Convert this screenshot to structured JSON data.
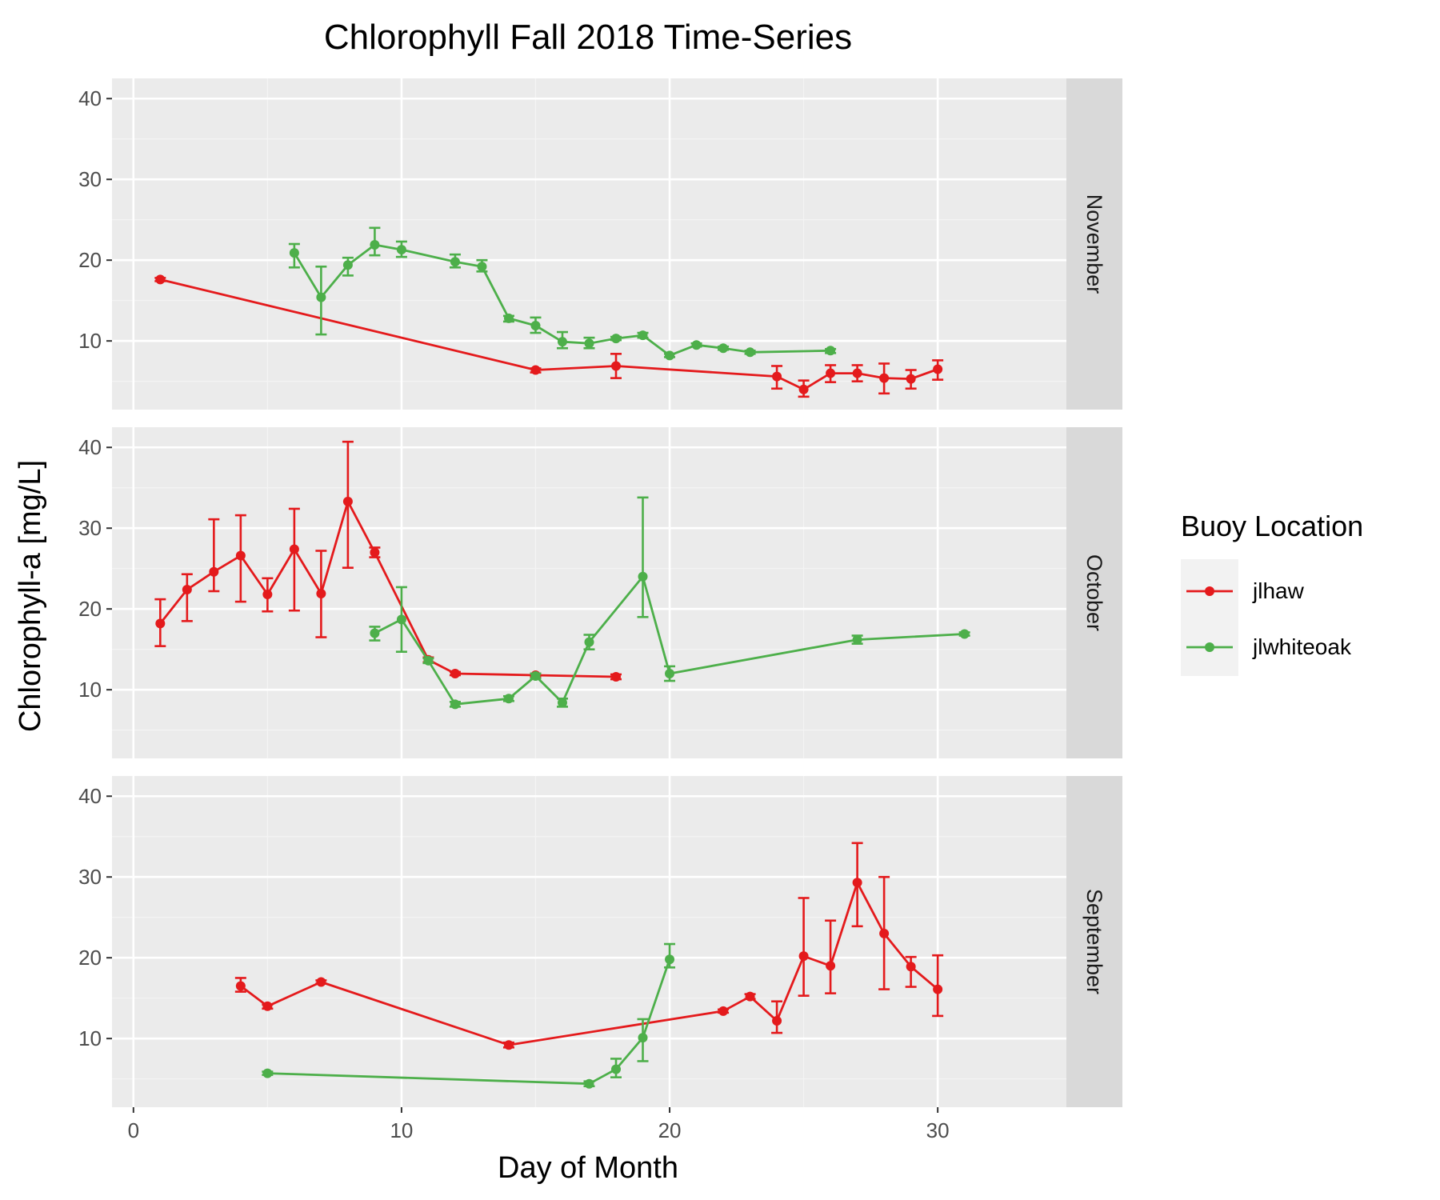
{
  "chart_data": {
    "type": "line",
    "title": "Chlorophyll Fall 2018 Time-Series",
    "xlabel": "Day of Month",
    "ylabel": "Chlorophyll-a [mg/L]",
    "xlim": [
      -0.8,
      34.8
    ],
    "ylim": [
      1.5,
      42.5
    ],
    "x_ticks": [
      0,
      10,
      20,
      30
    ],
    "y_ticks": [
      10,
      20,
      30,
      40
    ],
    "grid": true,
    "error_bars": true,
    "legend": {
      "title": "Buoy Location",
      "placement": "right",
      "entries": [
        "jlhaw",
        "jlwhiteoak"
      ]
    },
    "colors": {
      "jlhaw": "#e41a1c",
      "jlwhiteoak": "#4daf4a"
    },
    "panels": [
      {
        "strip": "November",
        "series": [
          {
            "name": "jlhaw",
            "points": [
              {
                "x": 1,
                "y": 17.6,
                "lo": 17.4,
                "hi": 17.8
              },
              {
                "x": 15,
                "y": 6.4,
                "lo": 6.1,
                "hi": 6.6
              },
              {
                "x": 18,
                "y": 6.9,
                "lo": 5.4,
                "hi": 8.4
              },
              {
                "x": 24,
                "y": 5.6,
                "lo": 4.1,
                "hi": 6.9
              },
              {
                "x": 25,
                "y": 4.0,
                "lo": 3.1,
                "hi": 5.1
              },
              {
                "x": 26,
                "y": 6.0,
                "lo": 4.9,
                "hi": 7.0
              },
              {
                "x": 27,
                "y": 6.0,
                "lo": 5.0,
                "hi": 7.0
              },
              {
                "x": 28,
                "y": 5.4,
                "lo": 3.5,
                "hi": 7.2
              },
              {
                "x": 29,
                "y": 5.3,
                "lo": 4.1,
                "hi": 6.4
              },
              {
                "x": 30,
                "y": 6.5,
                "lo": 5.2,
                "hi": 7.6
              }
            ]
          },
          {
            "name": "jlwhiteoak",
            "points": [
              {
                "x": 6,
                "y": 20.9,
                "lo": 19.1,
                "hi": 22.0
              },
              {
                "x": 7,
                "y": 15.4,
                "lo": 10.8,
                "hi": 19.2
              },
              {
                "x": 8,
                "y": 19.4,
                "lo": 18.1,
                "hi": 20.3
              },
              {
                "x": 9,
                "y": 21.9,
                "lo": 20.6,
                "hi": 24.0
              },
              {
                "x": 10,
                "y": 21.3,
                "lo": 20.4,
                "hi": 22.3
              },
              {
                "x": 12,
                "y": 19.8,
                "lo": 19.1,
                "hi": 20.7
              },
              {
                "x": 13,
                "y": 19.2,
                "lo": 18.6,
                "hi": 20.0
              },
              {
                "x": 14,
                "y": 12.8,
                "lo": 12.4,
                "hi": 13.1
              },
              {
                "x": 15,
                "y": 11.9,
                "lo": 11.0,
                "hi": 12.9
              },
              {
                "x": 16,
                "y": 9.9,
                "lo": 9.1,
                "hi": 11.1
              },
              {
                "x": 17,
                "y": 9.7,
                "lo": 9.1,
                "hi": 10.4
              },
              {
                "x": 18,
                "y": 10.3,
                "lo": 10.1,
                "hi": 10.5
              },
              {
                "x": 19,
                "y": 10.7,
                "lo": 10.4,
                "hi": 11.0
              },
              {
                "x": 20,
                "y": 8.2,
                "lo": 8.0,
                "hi": 8.4
              },
              {
                "x": 21,
                "y": 9.5,
                "lo": 9.3,
                "hi": 9.7
              },
              {
                "x": 22,
                "y": 9.1,
                "lo": 8.9,
                "hi": 9.3
              },
              {
                "x": 23,
                "y": 8.6,
                "lo": 8.4,
                "hi": 8.8
              },
              {
                "x": 26,
                "y": 8.8,
                "lo": 8.5,
                "hi": 9.0
              }
            ]
          }
        ]
      },
      {
        "strip": "October",
        "series": [
          {
            "name": "jlhaw",
            "points": [
              {
                "x": 1,
                "y": 18.2,
                "lo": 15.4,
                "hi": 21.2
              },
              {
                "x": 2,
                "y": 22.4,
                "lo": 18.5,
                "hi": 24.3
              },
              {
                "x": 3,
                "y": 24.6,
                "lo": 22.2,
                "hi": 31.1
              },
              {
                "x": 4,
                "y": 26.6,
                "lo": 20.9,
                "hi": 31.6
              },
              {
                "x": 5,
                "y": 21.8,
                "lo": 19.7,
                "hi": 23.8
              },
              {
                "x": 6,
                "y": 27.4,
                "lo": 19.8,
                "hi": 32.4
              },
              {
                "x": 7,
                "y": 21.9,
                "lo": 16.5,
                "hi": 27.2
              },
              {
                "x": 8,
                "y": 33.3,
                "lo": 25.1,
                "hi": 40.7
              },
              {
                "x": 9,
                "y": 27.0,
                "lo": 26.4,
                "hi": 27.6
              },
              {
                "x": 11,
                "y": 13.7,
                "lo": 13.4,
                "hi": 14.0
              },
              {
                "x": 12,
                "y": 12.0,
                "lo": 11.8,
                "hi": 12.2
              },
              {
                "x": 15,
                "y": 11.8,
                "lo": 11.6,
                "hi": 12.0
              },
              {
                "x": 18,
                "y": 11.6,
                "lo": 11.3,
                "hi": 11.9
              }
            ]
          },
          {
            "name": "jlwhiteoak",
            "points": [
              {
                "x": 9,
                "y": 17.0,
                "lo": 16.1,
                "hi": 17.8
              },
              {
                "x": 10,
                "y": 18.7,
                "lo": 14.7,
                "hi": 22.7
              },
              {
                "x": 11,
                "y": 13.6,
                "lo": 13.3,
                "hi": 13.9
              },
              {
                "x": 12,
                "y": 8.2,
                "lo": 7.9,
                "hi": 8.5
              },
              {
                "x": 14,
                "y": 8.9,
                "lo": 8.6,
                "hi": 9.2
              },
              {
                "x": 15,
                "y": 11.7,
                "lo": 11.4,
                "hi": 12.0
              },
              {
                "x": 16,
                "y": 8.4,
                "lo": 7.9,
                "hi": 8.9
              },
              {
                "x": 17,
                "y": 15.9,
                "lo": 15.0,
                "hi": 16.8
              },
              {
                "x": 19,
                "y": 24.0,
                "lo": 19.0,
                "hi": 33.8
              },
              {
                "x": 20,
                "y": 12.0,
                "lo": 11.1,
                "hi": 12.9
              },
              {
                "x": 27,
                "y": 16.2,
                "lo": 15.7,
                "hi": 16.7
              },
              {
                "x": 31,
                "y": 16.9,
                "lo": 16.7,
                "hi": 17.1
              }
            ]
          }
        ]
      },
      {
        "strip": "September",
        "series": [
          {
            "name": "jlhaw",
            "points": [
              {
                "x": 4,
                "y": 16.5,
                "lo": 15.8,
                "hi": 17.5
              },
              {
                "x": 5,
                "y": 14.0,
                "lo": 13.7,
                "hi": 14.2
              },
              {
                "x": 7,
                "y": 17.0,
                "lo": 16.8,
                "hi": 17.2
              },
              {
                "x": 14,
                "y": 9.2,
                "lo": 8.9,
                "hi": 9.5
              },
              {
                "x": 22,
                "y": 13.4,
                "lo": 13.2,
                "hi": 13.6
              },
              {
                "x": 23,
                "y": 15.2,
                "lo": 14.9,
                "hi": 15.5
              },
              {
                "x": 24,
                "y": 12.2,
                "lo": 10.7,
                "hi": 14.6
              },
              {
                "x": 25,
                "y": 20.2,
                "lo": 15.3,
                "hi": 27.4
              },
              {
                "x": 26,
                "y": 19.0,
                "lo": 15.6,
                "hi": 24.6
              },
              {
                "x": 27,
                "y": 29.3,
                "lo": 23.9,
                "hi": 34.2
              },
              {
                "x": 28,
                "y": 23.0,
                "lo": 16.1,
                "hi": 30.0
              },
              {
                "x": 29,
                "y": 18.9,
                "lo": 16.4,
                "hi": 20.1
              },
              {
                "x": 30,
                "y": 16.1,
                "lo": 12.8,
                "hi": 20.3
              }
            ]
          },
          {
            "name": "jlwhiteoak",
            "points": [
              {
                "x": 5,
                "y": 5.7,
                "lo": 5.5,
                "hi": 5.9
              },
              {
                "x": 17,
                "y": 4.4,
                "lo": 4.1,
                "hi": 4.7
              },
              {
                "x": 18,
                "y": 6.2,
                "lo": 5.2,
                "hi": 7.5
              },
              {
                "x": 19,
                "y": 10.1,
                "lo": 7.2,
                "hi": 12.4
              },
              {
                "x": 20,
                "y": 19.8,
                "lo": 18.8,
                "hi": 21.7
              }
            ]
          }
        ]
      }
    ]
  }
}
